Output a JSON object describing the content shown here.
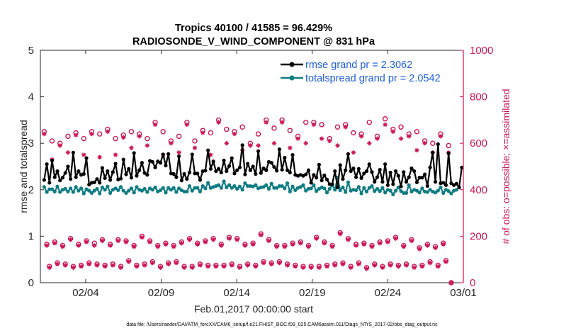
{
  "chart_data": {
    "type": "line",
    "title_line1": "Tropics 40100 / 41585 = 96.429%",
    "title_line2": "RADIOSONDE_V_WIND_COMPONENT @ 831 hPa",
    "xlabel": "Feb.01,2017 00:00:00 start",
    "ylabel_left": "rmse and totalspread",
    "ylabel_right": "# of obs: o=possible; ×=assimilated",
    "footer": "data file: /Users/raeder/DAI/ATM_forcXX/CAM6_setup/f.e21.FHIST_BGC.f09_025.CAM6assim.011/Diags_NTrS_2017-02/obs_diag_output.nc",
    "xlim": [
      1,
      29
    ],
    "ylim_left": [
      0,
      5
    ],
    "ylim_right": [
      0,
      1000
    ],
    "xticks": [
      {
        "value": 4,
        "label": "02/04"
      },
      {
        "value": 9,
        "label": "02/09"
      },
      {
        "value": 14,
        "label": "02/14"
      },
      {
        "value": 19,
        "label": "02/19"
      },
      {
        "value": 24,
        "label": "02/24"
      },
      {
        "value": 29,
        "label": "03/01"
      }
    ],
    "yticks_left": [
      "0",
      "1",
      "2",
      "3",
      "4",
      "5"
    ],
    "yticks_right": [
      "0",
      "200",
      "400",
      "600",
      "800",
      "1000"
    ],
    "legend": [
      {
        "label": "rmse grand pr = 2.3062",
        "color": "#000000"
      },
      {
        "label": "totalspread grand pr = 2.0542",
        "color": "#0f7c82"
      }
    ],
    "colors": {
      "rmse": "#000000",
      "spread": "#0f7c82",
      "obs": "#cc1556"
    },
    "series": [
      {
        "name": "rmse",
        "axis": "left",
        "values": [
          2.21,
          2.55,
          2.15,
          2.63,
          2.27,
          2.4,
          2.2,
          2.26,
          2.36,
          2.5,
          2.23,
          2.8,
          2.27,
          2.4,
          2.32,
          2.34,
          2.68,
          2.11,
          2.15,
          2.16,
          2.23,
          2.15,
          2.47,
          2.25,
          2.4,
          2.21,
          2.38,
          2.56,
          2.22,
          2.24,
          2.65,
          2.33,
          2.45,
          2.26,
          2.79,
          2.3,
          2.42,
          2.58,
          2.36,
          2.32,
          2.62,
          2.6,
          2.48,
          2.61,
          2.58,
          2.76,
          2.52,
          2.77,
          2.35,
          2.34,
          2.27,
          2.72,
          2.2,
          2.34,
          2.23,
          2.37,
          2.76,
          2.35,
          2.35,
          2.21,
          2.4,
          2.41,
          2.85,
          2.45,
          2.61,
          2.4,
          2.45,
          2.37,
          2.63,
          2.4,
          2.51,
          2.68,
          2.35,
          2.42,
          2.48,
          2.96,
          2.33,
          2.56,
          2.42,
          2.5,
          2.34,
          2.83,
          2.36,
          2.46,
          2.42,
          2.6,
          2.58,
          2.49,
          2.41,
          2.87,
          2.43,
          2.69,
          2.42,
          2.37,
          2.75,
          2.32,
          2.3,
          2.32,
          2.3,
          2.33,
          2.42,
          2.15,
          2.32,
          2.26,
          2.54,
          2.2,
          2.31,
          2.22,
          2.12,
          2.12,
          2.4,
          2.05,
          2.53,
          2.23,
          2.42,
          2.77,
          2.4,
          2.46,
          2.27,
          2.45,
          2.25,
          2.35,
          2.4,
          2.55,
          2.38,
          2.17,
          2.27,
          2.43,
          2.17,
          2.55,
          2.1,
          2.37,
          2.12,
          2.4,
          2.3,
          2.07,
          2.38,
          2.17,
          2.27,
          2.46,
          2.4,
          2.16,
          2.26,
          2.26,
          2.33,
          2.08,
          2.48,
          2.8,
          2.17,
          2.98,
          2.14,
          2.15,
          2.1,
          2.78,
          2.14,
          2.1,
          2.13,
          2.05,
          2.48
        ]
      },
      {
        "name": "totalspread",
        "axis": "left",
        "values": [
          2.06,
          1.95,
          2.01,
          2.01,
          1.96,
          2.07,
          1.95,
          2.0,
          2.02,
          1.96,
          2.03,
          1.95,
          2.06,
          1.98,
          2.03,
          1.92,
          2.01,
          1.98,
          1.93,
          1.98,
          2.02,
          1.92,
          2.05,
          2.0,
          2.07,
          1.93,
          2.0,
          2.03,
          1.99,
          2.06,
          1.98,
          1.93,
          1.98,
          2.03,
          1.94,
          2.06,
          2.0,
          1.98,
          2.02,
          1.95,
          2.03,
          2.0,
          2.05,
          1.96,
          1.99,
          2.04,
          1.94,
          2.04,
          2.0,
          2.04,
          1.95,
          2.03,
          1.99,
          1.96,
          1.96,
          2.08,
          1.98,
          2.04,
          2.04,
          1.96,
          2.08,
          2.03,
          2.15,
          2.04,
          2.06,
          2.08,
          2.1,
          2.04,
          2.18,
          2.05,
          2.1,
          2.04,
          2.08,
          2.02,
          2.07,
          2.0,
          2.14,
          2.08,
          2.08,
          2.07,
          2.1,
          2.03,
          2.05,
          2.06,
          2.1,
          2.02,
          2.13,
          2.04,
          2.04,
          2.08,
          2.08,
          2.03,
          2.14,
          1.96,
          2.07,
          1.99,
          2.04,
          2.06,
          2.1,
          1.98,
          2.02,
          2.03,
          2.1,
          1.97,
          2.02,
          2.05,
          2.03,
          1.94,
          2.02,
          2.1,
          2.0,
          2.26,
          1.99,
          2.05,
          1.95,
          2.16,
          1.98,
          2.0,
          1.99,
          2.06,
          1.92,
          2.04,
          1.96,
          2.04,
          2.08,
          1.97,
          2.02,
          1.97,
          2.04,
          1.94,
          2.0,
          1.98,
          1.9,
          1.98,
          2.05,
          1.97,
          1.93,
          1.93,
          2.1,
          1.96,
          2.0,
          1.98,
          1.94,
          2.03,
          1.96,
          1.95,
          2.0,
          1.96,
          1.94,
          1.98,
          2.05,
          1.93,
          2.0,
          1.97,
          1.92,
          1.98,
          2.0
        ]
      },
      {
        "name": "obs_possible",
        "axis": "right",
        "values": [
          650,
          165,
          70,
          610,
          175,
          85,
          600,
          160,
          80,
          630,
          190,
          70,
          645,
          165,
          75,
          620,
          180,
          85,
          650,
          170,
          80,
          640,
          185,
          75,
          660,
          165,
          80,
          620,
          185,
          70,
          635,
          180,
          95,
          650,
          160,
          75,
          640,
          200,
          80,
          620,
          180,
          90,
          690,
          160,
          70,
          650,
          170,
          85,
          610,
          160,
          90,
          630,
          175,
          70,
          690,
          190,
          70,
          610,
          170,
          80,
          655,
          180,
          75,
          645,
          190,
          75,
          700,
          165,
          75,
          660,
          195,
          80,
          650,
          190,
          70,
          670,
          165,
          80,
          600,
          170,
          75,
          640,
          210,
          90,
          700,
          185,
          85,
          665,
          160,
          90,
          700,
          160,
          80,
          655,
          170,
          75,
          630,
          175,
          70,
          690,
          160,
          70,
          690,
          195,
          70,
          680,
          175,
          75,
          620,
          160,
          80,
          670,
          215,
          85,
          680,
          190,
          70,
          645,
          165,
          85,
          640,
          170,
          65,
          690,
          160,
          80,
          630,
          175,
          70,
          705,
          180,
          80,
          660,
          195,
          75,
          670,
          160,
          80,
          640,
          185,
          70,
          650,
          150,
          75,
          610,
          165,
          90,
          600,
          155,
          75,
          640,
          170,
          95,
          590,
          0
        ]
      },
      {
        "name": "obs_assimilated",
        "axis": "right",
        "values": [
          640,
          160,
          65,
          530,
          170,
          80,
          590,
          155,
          75,
          560,
          185,
          65,
          635,
          160,
          70,
          550,
          175,
          80,
          640,
          160,
          75,
          540,
          180,
          70,
          650,
          160,
          75,
          550,
          180,
          65,
          625,
          175,
          90,
          580,
          155,
          70,
          630,
          195,
          75,
          590,
          175,
          85,
          680,
          155,
          65,
          550,
          165,
          80,
          600,
          155,
          85,
          560,
          170,
          65,
          680,
          185,
          65,
          580,
          165,
          75,
          645,
          175,
          70,
          550,
          185,
          70,
          690,
          160,
          70,
          600,
          190,
          75,
          640,
          185,
          65,
          570,
          160,
          75,
          590,
          165,
          70,
          590,
          205,
          85,
          690,
          180,
          80,
          600,
          155,
          85,
          690,
          155,
          75,
          580,
          165,
          70,
          620,
          170,
          65,
          600,
          155,
          65,
          680,
          190,
          65,
          620,
          170,
          70,
          610,
          155,
          75,
          590,
          210,
          80,
          670,
          185,
          65,
          560,
          160,
          80,
          630,
          165,
          60,
          600,
          155,
          75,
          620,
          170,
          65,
          680,
          175,
          75,
          650,
          190,
          70,
          620,
          155,
          75,
          630,
          180,
          65,
          570,
          145,
          70,
          600,
          160,
          85,
          560,
          150,
          70,
          630,
          165,
          90,
          560,
          0
        ]
      }
    ]
  }
}
